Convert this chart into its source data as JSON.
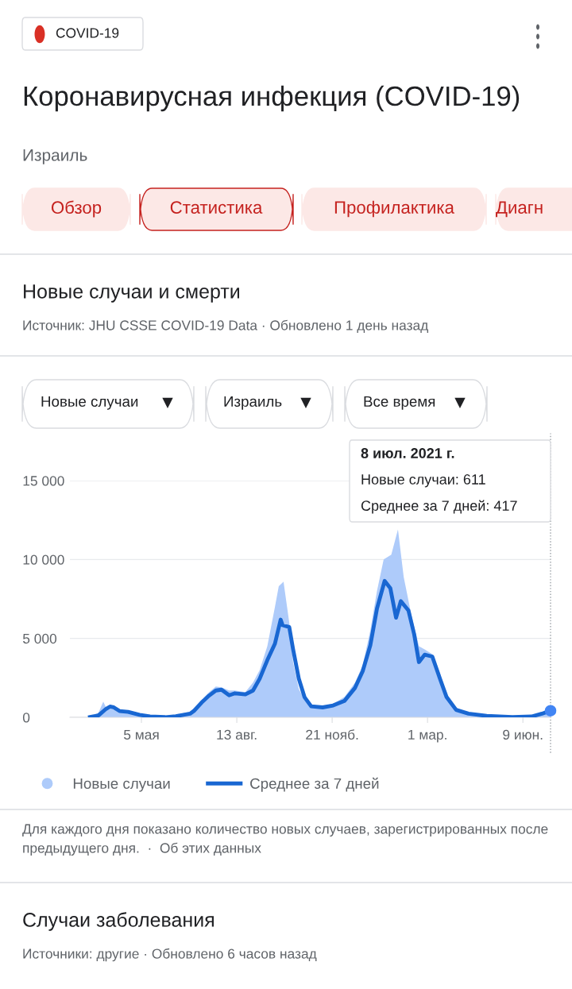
{
  "chart_data": {
    "type": "line",
    "title": "Коронавирусная инфекция (COVID-19)",
    "subtitle": "Израиль",
    "annotations": [
      "COVID-19",
      "Обзор",
      "Статистика",
      "Профилактика",
      "Диагн",
      "Новые случаи и смерти",
      "Источник: JHU CSSE COVID-19 Data · Обновлено 1 день назад",
      "Новые случаи",
      "Израиль",
      "Все время",
      "8 июл. 2021 г.",
      "Новые случаи: 611",
      "Среднее за 7 дней: 417",
      "Для каждого дня показано количество новых случаев, зарегистрированных после предыдущего дня.  ·  Об этих данных",
      "Случаи заболевания",
      "Источники: другие · Обновлено 6 часов назад"
    ],
    "series": [
      {
        "name": "Новые случаи",
        "type": "area",
        "color": "#aecbfa",
        "x": [
          "2020-03-12",
          "2020-03-21",
          "2020-03-26",
          "2020-03-29",
          "2020-04-02",
          "2020-04-12",
          "2020-04-21",
          "2020-05-03",
          "2020-05-14",
          "2020-05-30",
          "2020-06-10",
          "2020-06-25",
          "2020-07-07",
          "2020-07-15",
          "2020-07-22",
          "2020-07-28",
          "2020-08-05",
          "2020-08-11",
          "2020-08-22",
          "2020-08-30",
          "2020-09-06",
          "2020-09-14",
          "2020-09-22",
          "2020-09-26",
          "2020-10-01",
          "2020-10-07",
          "2020-10-11",
          "2020-10-17",
          "2020-10-23",
          "2020-10-30",
          "2020-11-11",
          "2020-11-22",
          "2020-12-04",
          "2020-12-15",
          "2020-12-23",
          "2020-12-31",
          "2021-01-07",
          "2021-01-14",
          "2021-01-22",
          "2021-01-29",
          "2021-02-04",
          "2021-02-12",
          "2021-02-20",
          "2021-02-26",
          "2021-03-06",
          "2021-03-14",
          "2021-03-21",
          "2021-03-31",
          "2021-04-13",
          "2021-05-02",
          "2021-05-29",
          "2021-06-18",
          "2021-06-29",
          "2021-07-08"
        ],
        "values": [
          0,
          300,
          1000,
          600,
          750,
          450,
          350,
          150,
          50,
          30,
          150,
          350,
          1100,
          1600,
          1950,
          1900,
          1700,
          1700,
          1600,
          2200,
          3000,
          4500,
          7000,
          8300,
          8600,
          6000,
          3500,
          1800,
          1100,
          800,
          700,
          850,
          1300,
          2200,
          3300,
          5500,
          8000,
          10000,
          10300,
          11900,
          8900,
          6500,
          4500,
          4300,
          4000,
          2800,
          1500,
          600,
          300,
          120,
          30,
          100,
          350,
          611
        ]
      },
      {
        "name": "Среднее за 7 дней",
        "color": "#1967d2",
        "x": [
          "2020-03-12",
          "2020-03-21",
          "2020-03-29",
          "2020-04-02",
          "2020-04-06",
          "2020-04-12",
          "2020-04-21",
          "2020-05-03",
          "2020-05-14",
          "2020-05-30",
          "2020-06-10",
          "2020-06-25",
          "2020-06-29",
          "2020-07-07",
          "2020-07-15",
          "2020-07-22",
          "2020-07-28",
          "2020-08-05",
          "2020-08-11",
          "2020-08-22",
          "2020-08-30",
          "2020-09-06",
          "2020-09-14",
          "2020-09-22",
          "2020-09-28",
          "2020-09-30",
          "2020-10-07",
          "2020-10-11",
          "2020-10-17",
          "2020-10-23",
          "2020-10-30",
          "2020-11-11",
          "2020-11-22",
          "2020-12-04",
          "2020-12-15",
          "2020-12-23",
          "2020-12-31",
          "2021-01-07",
          "2021-01-15",
          "2021-01-21",
          "2021-01-27",
          "2021-02-01",
          "2021-02-09",
          "2021-02-15",
          "2021-02-20",
          "2021-02-26",
          "2021-03-06",
          "2021-03-14",
          "2021-03-21",
          "2021-03-31",
          "2021-04-13",
          "2021-05-02",
          "2021-05-29",
          "2021-06-18",
          "2021-06-29",
          "2021-07-08"
        ],
        "values": [
          20,
          120,
          540,
          680,
          630,
          400,
          350,
          160,
          50,
          10,
          70,
          230,
          400,
          930,
          1380,
          1700,
          1750,
          1400,
          1520,
          1450,
          1700,
          2450,
          3620,
          4670,
          6190,
          5840,
          5720,
          4320,
          2450,
          1280,
          700,
          630,
          750,
          1050,
          1870,
          2920,
          4560,
          6890,
          8640,
          8180,
          6310,
          7360,
          6770,
          5260,
          3500,
          3970,
          3850,
          2450,
          1280,
          470,
          230,
          90,
          20,
          50,
          230,
          417
        ]
      },
      {
        "type": "scatter",
        "marker": "circle",
        "color": "#4285f4",
        "x": [
          "2021-07-08"
        ],
        "values": [
          417
        ]
      }
    ],
    "xlim": [
      "2020-02-20",
      "2021-07-08"
    ],
    "xticks": [
      {
        "value": "2020-05-05",
        "label": "5 мая"
      },
      {
        "value": "2020-08-13",
        "label": "13 авг."
      },
      {
        "value": "2020-11-21",
        "label": "21 нояб."
      },
      {
        "value": "2021-03-01",
        "label": "1 мар."
      },
      {
        "value": "2021-06-09",
        "label": "9 июн."
      }
    ],
    "ylim": [
      0,
      15000
    ],
    "yticks": [
      0,
      {
        "value": 5000,
        "label": "5 000"
      },
      {
        "value": 10000,
        "label": "10 000"
      },
      {
        "value": 15000,
        "label": "15 000"
      }
    ],
    "ref_lines": [
      {
        "axis": "x",
        "value": "2021-07-08",
        "color": "#9aa0a6",
        "line_style": "dotted"
      }
    ],
    "grid": "y",
    "legend": "bottom",
    "marker": "none",
    "line_style": "solid"
  }
}
